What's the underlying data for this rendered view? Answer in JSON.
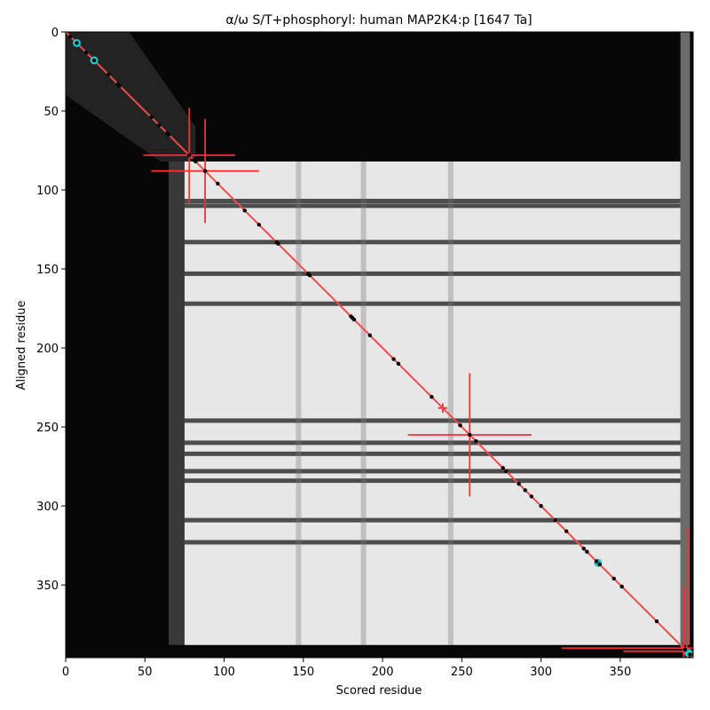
{
  "chart_data": {
    "type": "heatmap",
    "title": "α/ω S/T+phosphoryl: human MAP2K4:p [1647 Ta]",
    "xlabel": "Scored residue",
    "ylabel": "Aligned residue",
    "xlim": [
      0,
      396
    ],
    "ylim": [
      396,
      0
    ],
    "x_ticks": [
      0,
      50,
      100,
      150,
      200,
      250,
      300,
      350
    ],
    "y_ticks": [
      0,
      50,
      100,
      150,
      200,
      250,
      300,
      350
    ],
    "grid": false,
    "colormap": "grayscale",
    "heatmap_model": {
      "bright_block_x": [
        75,
        388
      ],
      "bright_block_y": [
        82,
        388
      ],
      "dark_horizontal_bands": [
        107,
        110,
        133,
        153,
        172,
        246,
        260,
        267,
        278,
        284,
        309,
        323
      ],
      "dark_vertical_bands": [
        147,
        188,
        243
      ]
    },
    "diagonal": {
      "from": [
        0,
        0
      ],
      "to": [
        396,
        396
      ],
      "color": "#f04b4b"
    },
    "points": [
      [
        3,
        3
      ],
      [
        7,
        7
      ],
      [
        13,
        13
      ],
      [
        18,
        18
      ],
      [
        27,
        27
      ],
      [
        33,
        33
      ],
      [
        34,
        34
      ],
      [
        54,
        54
      ],
      [
        59,
        59
      ],
      [
        64,
        64
      ],
      [
        65,
        65
      ],
      [
        78,
        78
      ],
      [
        81,
        81
      ],
      [
        82,
        82
      ],
      [
        88,
        88
      ],
      [
        96,
        96
      ],
      [
        113,
        113
      ],
      [
        122,
        122
      ],
      [
        133,
        133
      ],
      [
        134,
        134
      ],
      [
        153,
        153
      ],
      [
        154,
        154
      ],
      [
        180,
        180
      ],
      [
        181,
        181
      ],
      [
        182,
        182
      ],
      [
        192,
        192
      ],
      [
        207,
        207
      ],
      [
        210,
        210
      ],
      [
        231,
        231
      ],
      [
        249,
        249
      ],
      [
        255,
        255
      ],
      [
        259,
        259
      ],
      [
        276,
        276
      ],
      [
        278,
        278
      ],
      [
        286,
        286
      ],
      [
        290,
        290
      ],
      [
        294,
        294
      ],
      [
        300,
        300
      ],
      [
        309,
        309
      ],
      [
        316,
        316
      ],
      [
        327,
        327
      ],
      [
        329,
        329
      ],
      [
        335,
        335
      ],
      [
        337,
        337
      ],
      [
        346,
        346
      ],
      [
        351,
        351
      ],
      [
        373,
        373
      ],
      [
        391,
        391
      ],
      [
        394,
        394
      ]
    ],
    "highlighted_points": [
      [
        7,
        7
      ],
      [
        18,
        18
      ],
      [
        336,
        336
      ],
      [
        393,
        393
      ]
    ],
    "error_crosses": [
      {
        "x": 78,
        "y": 78,
        "xerr": [
          29,
          29
        ],
        "yerr": [
          30,
          30
        ]
      },
      {
        "x": 88,
        "y": 88,
        "xerr": [
          34,
          34
        ],
        "yerr": [
          33,
          33
        ]
      },
      {
        "x": 238,
        "y": 238,
        "xerr": [
          3,
          3
        ],
        "yerr": [
          3,
          3
        ]
      },
      {
        "x": 255,
        "y": 255,
        "xerr": [
          39,
          39
        ],
        "yerr": [
          39,
          39
        ]
      },
      {
        "x": 390,
        "y": 390,
        "xerr": [
          77,
          7
        ],
        "yerr": [
          39,
          7
        ]
      },
      {
        "x": 392,
        "y": 392,
        "xerr": [
          40,
          4
        ],
        "yerr": [
          78,
          4
        ]
      }
    ],
    "colors": {
      "line": "#f04b4b",
      "cross": "#ee3333",
      "point": "#000000",
      "highlight": "#1fc6c6"
    }
  }
}
